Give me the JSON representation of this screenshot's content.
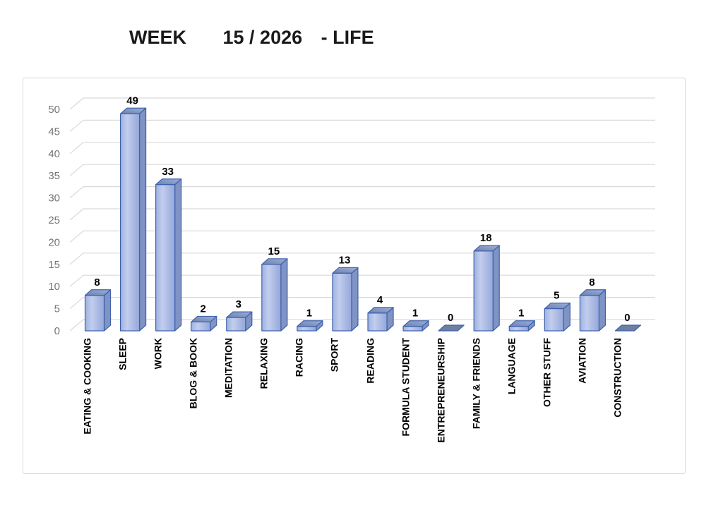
{
  "header": {
    "title_parts": [
      "WEEK",
      "15 / 2026",
      "- LIFE"
    ]
  },
  "chart_data": {
    "type": "bar",
    "subtype": "3d-column",
    "title": "WEEK 15 / 2026 - LIFE",
    "categories": [
      "EATING & COOKING",
      "SLEEP",
      "WORK",
      "BLOG & BOOK",
      "MEDITATION",
      "RELAXING",
      "RACING",
      "SPORT",
      "READING",
      "FORMULA STUDENT",
      "ENTREPRENEURSHIP",
      "FAMILY & FRIENDS",
      "LANGUAGE",
      "OTHER STUFF",
      "AVIATION",
      "CONSTRUCTION"
    ],
    "values": [
      8,
      49,
      33,
      2,
      3,
      15,
      1,
      13,
      4,
      1,
      0,
      18,
      1,
      5,
      8,
      0
    ],
    "xlabel": "",
    "ylabel": "",
    "ylim": [
      0,
      50
    ],
    "ytick_step": 5,
    "ytick_labels": [
      "0",
      "5",
      "10",
      "15",
      "20",
      "25",
      "30",
      "35",
      "40",
      "45",
      "50"
    ],
    "grid": true,
    "legend": "none",
    "data_labels": "above-bars",
    "colors": {
      "bar_front_light": "#c2cdee",
      "bar_front_dark": "#96a9d9",
      "bar_side": "#8093c5",
      "bar_top_dark": "#6a80ac",
      "bar_top_light": "#9fb0dc",
      "bar_border": "#3e62ac",
      "zero_marker_fill": "#6f7fa1",
      "gridline": "#d9d9d9",
      "tick_label": "#757575",
      "data_label": "#000000",
      "frame_border": "#d9d9d9"
    }
  }
}
